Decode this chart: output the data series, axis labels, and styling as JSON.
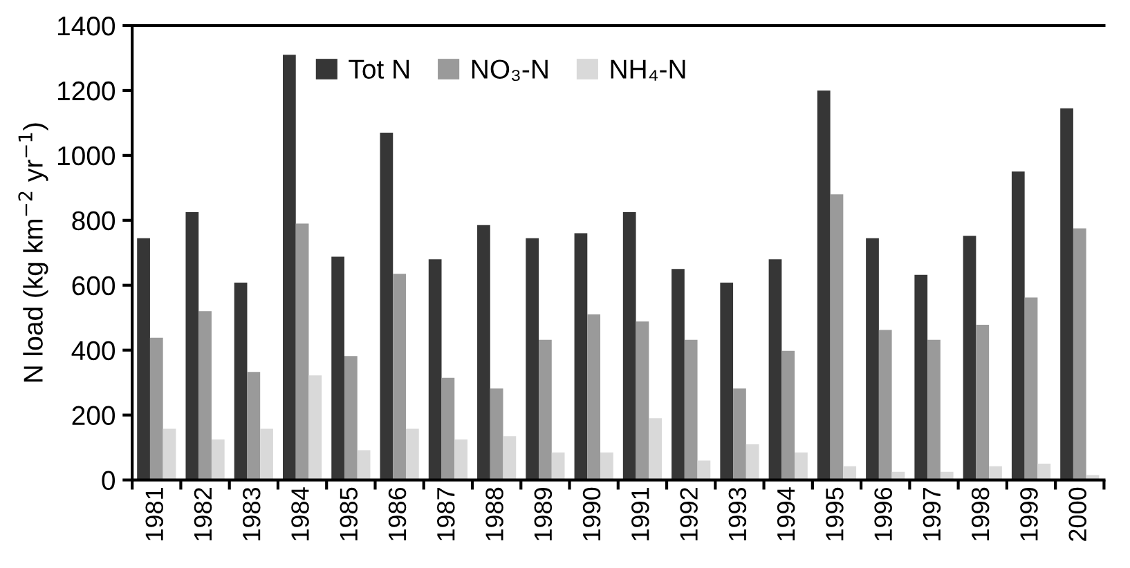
{
  "chart_data": {
    "type": "bar",
    "ylabel": "N load (kg km$^{−2}$ yr$^{−1}$)",
    "categories": [
      "1981",
      "1982",
      "1983",
      "1984",
      "1985",
      "1986",
      "1987",
      "1988",
      "1989",
      "1990",
      "1991",
      "1992",
      "1993",
      "1994",
      "1995",
      "1996",
      "1997",
      "1998",
      "1999",
      "2000"
    ],
    "series": [
      {
        "name": "Tot N",
        "color": "#363636",
        "values": [
          745,
          825,
          608,
          1310,
          688,
          1070,
          680,
          785,
          745,
          760,
          825,
          650,
          608,
          680,
          1200,
          745,
          632,
          752,
          950,
          1145
        ]
      },
      {
        "name": "NO₃-N",
        "color": "#9a9a9a",
        "values": [
          438,
          520,
          333,
          790,
          382,
          635,
          315,
          282,
          432,
          510,
          488,
          432,
          282,
          398,
          880,
          462,
          432,
          478,
          562,
          775
        ]
      },
      {
        "name": "NH₄-N",
        "color": "#d9d9d9",
        "values": [
          158,
          125,
          158,
          322,
          92,
          158,
          125,
          135,
          85,
          85,
          190,
          60,
          110,
          85,
          42,
          25,
          25,
          42,
          50,
          15
        ]
      }
    ],
    "ylim": [
      0,
      1400
    ],
    "yticks": [
      0,
      200,
      400,
      600,
      800,
      1000,
      1200,
      1400
    ],
    "grid": false,
    "legend": "top"
  }
}
